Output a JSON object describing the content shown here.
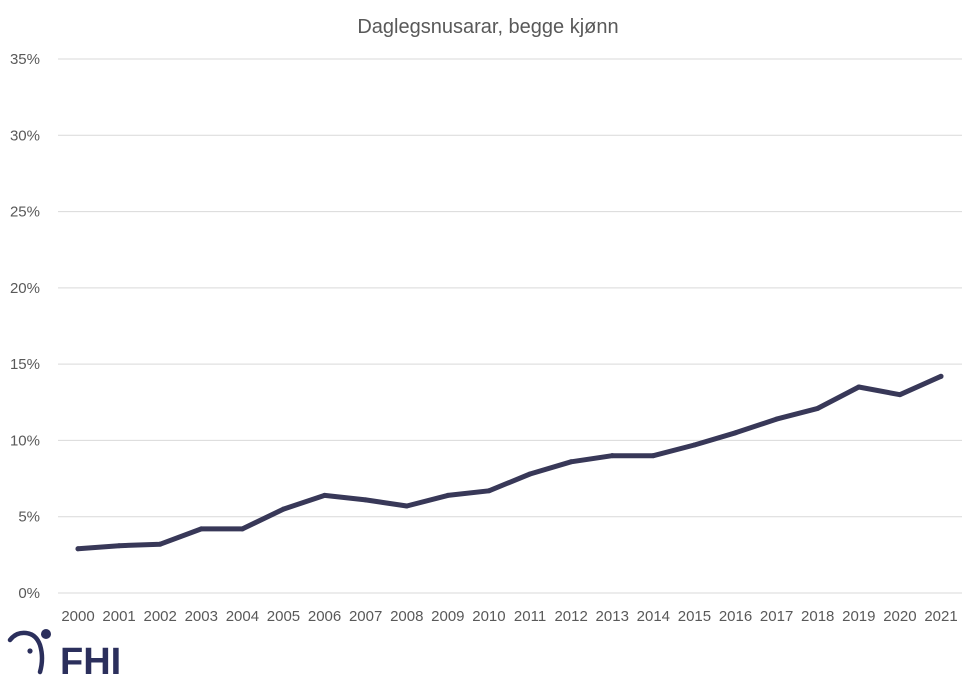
{
  "chart_data": {
    "type": "line",
    "title": "Daglegsnusarar, begge kjønn",
    "xlabel": "",
    "ylabel": "",
    "categories": [
      "2000",
      "2001",
      "2002",
      "2003",
      "2004",
      "2005",
      "2006",
      "2007",
      "2008",
      "2009",
      "2010",
      "2011",
      "2012",
      "2013",
      "2014",
      "2015",
      "2016",
      "2017",
      "2018",
      "2019",
      "2020",
      "2021"
    ],
    "series": [
      {
        "name": "Daglegsnusarar",
        "values": [
          2.9,
          3.1,
          3.2,
          4.2,
          4.2,
          5.5,
          6.4,
          6.1,
          5.7,
          6.4,
          6.7,
          7.8,
          8.6,
          9.0,
          9.0,
          9.7,
          10.5,
          11.4,
          12.1,
          13.5,
          13.0,
          14.2
        ]
      }
    ],
    "ylim": [
      0,
      35
    ],
    "yticks": [
      0,
      5,
      10,
      15,
      20,
      25,
      30,
      35
    ],
    "ytick_labels": [
      "0%",
      "5%",
      "10%",
      "15%",
      "20%",
      "25%",
      "30%",
      "35%"
    ],
    "grid": true
  },
  "logo": {
    "text": "FHI"
  },
  "colors": {
    "line": "#383858",
    "grid": "#d9d9d9",
    "text": "#595959",
    "logo": "#2b2f5c"
  }
}
